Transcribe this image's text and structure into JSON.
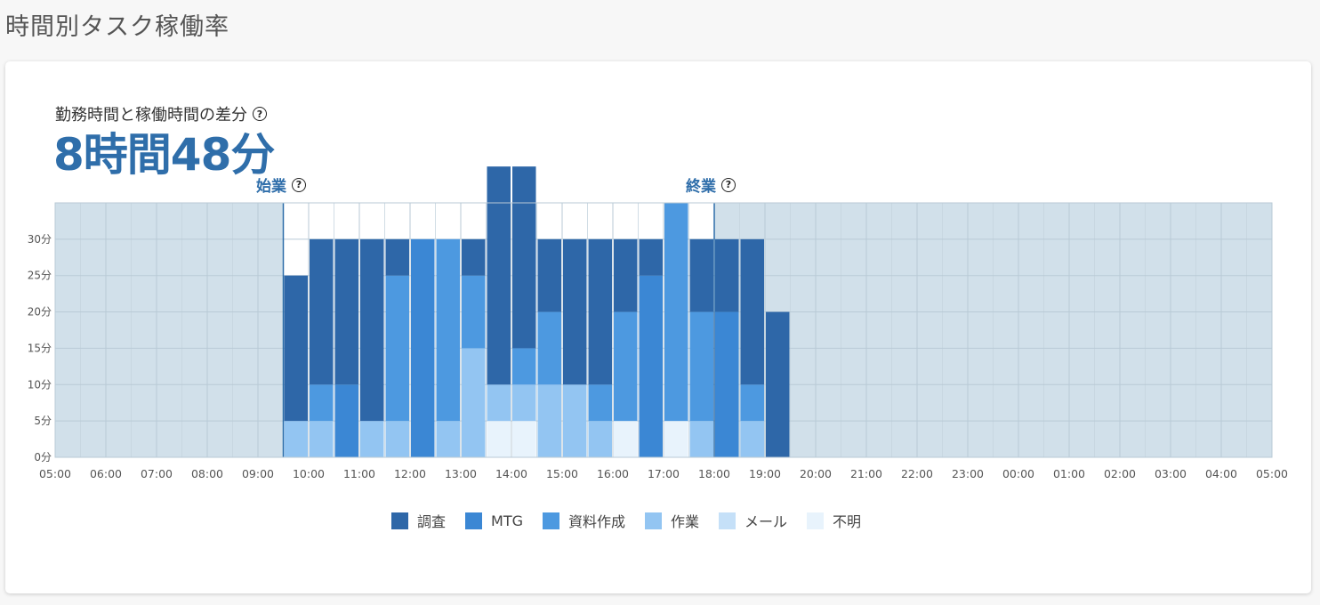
{
  "page": {
    "title": "時間別タスク稼働率"
  },
  "summary": {
    "label": "勤務時間と稼働時間の差分",
    "help_glyph": "?",
    "value": "8時間48分"
  },
  "markers": {
    "start_label": "始業",
    "start_time": "09:30",
    "end_label": "終業",
    "end_time": "18:00",
    "help_glyph": "?"
  },
  "colors": {
    "調査": "#2e67a8",
    "MTG": "#3b87d4",
    "資料作成": "#4d99e0",
    "作業": "#93c5f2",
    "メール": "#c5e0f8",
    "不明": "#e8f3fc",
    "outside_bg": "#d1e0ea",
    "marker": "#2f6eaa"
  },
  "chart_data": {
    "type": "bar",
    "stacked": true,
    "xlabels": [
      "05:00",
      "06:00",
      "07:00",
      "08:00",
      "09:00",
      "10:00",
      "11:00",
      "12:00",
      "13:00",
      "14:00",
      "15:00",
      "16:00",
      "17:00",
      "18:00",
      "19:00",
      "20:00",
      "21:00",
      "22:00",
      "23:00",
      "00:00",
      "01:00",
      "02:00",
      "03:00",
      "04:00",
      "05:00"
    ],
    "yticks": [
      "0分",
      "5分",
      "10分",
      "15分",
      "20分",
      "25分",
      "30分"
    ],
    "ylim": [
      0,
      35
    ],
    "legend": [
      "調査",
      "MTG",
      "資料作成",
      "作業",
      "メール",
      "不明"
    ],
    "legend_position": "bottom",
    "grid": true,
    "bars": [
      {
        "slot": "09:30",
        "segments": [
          {
            "task": "作業",
            "minutes": 5
          },
          {
            "task": "調査",
            "minutes": 20
          }
        ]
      },
      {
        "slot": "10:00",
        "segments": [
          {
            "task": "作業",
            "minutes": 5
          },
          {
            "task": "資料作成",
            "minutes": 5
          },
          {
            "task": "調査",
            "minutes": 20
          }
        ]
      },
      {
        "slot": "10:30",
        "segments": [
          {
            "task": "MTG",
            "minutes": 10
          },
          {
            "task": "調査",
            "minutes": 20
          }
        ]
      },
      {
        "slot": "11:00",
        "segments": [
          {
            "task": "作業",
            "minutes": 5
          },
          {
            "task": "調査",
            "minutes": 25
          }
        ]
      },
      {
        "slot": "11:30",
        "segments": [
          {
            "task": "作業",
            "minutes": 5
          },
          {
            "task": "資料作成",
            "minutes": 20
          },
          {
            "task": "調査",
            "minutes": 5
          }
        ]
      },
      {
        "slot": "12:00",
        "segments": [
          {
            "task": "MTG",
            "minutes": 30
          }
        ]
      },
      {
        "slot": "12:30",
        "segments": [
          {
            "task": "作業",
            "minutes": 5
          },
          {
            "task": "資料作成",
            "minutes": 25
          }
        ]
      },
      {
        "slot": "13:00",
        "segments": [
          {
            "task": "作業",
            "minutes": 15
          },
          {
            "task": "資料作成",
            "minutes": 10
          },
          {
            "task": "調査",
            "minutes": 5
          }
        ]
      },
      {
        "slot": "13:30",
        "segments": [
          {
            "task": "不明",
            "minutes": 5
          },
          {
            "task": "作業",
            "minutes": 5
          },
          {
            "task": "調査",
            "minutes": 30
          }
        ]
      },
      {
        "slot": "14:00",
        "segments": [
          {
            "task": "不明",
            "minutes": 5
          },
          {
            "task": "作業",
            "minutes": 5
          },
          {
            "task": "資料作成",
            "minutes": 5
          },
          {
            "task": "調査",
            "minutes": 25
          }
        ]
      },
      {
        "slot": "14:30",
        "segments": [
          {
            "task": "作業",
            "minutes": 10
          },
          {
            "task": "資料作成",
            "minutes": 10
          },
          {
            "task": "調査",
            "minutes": 10
          }
        ]
      },
      {
        "slot": "15:00",
        "segments": [
          {
            "task": "作業",
            "minutes": 10
          },
          {
            "task": "調査",
            "minutes": 20
          }
        ]
      },
      {
        "slot": "15:30",
        "segments": [
          {
            "task": "作業",
            "minutes": 5
          },
          {
            "task": "資料作成",
            "minutes": 5
          },
          {
            "task": "調査",
            "minutes": 20
          }
        ]
      },
      {
        "slot": "16:00",
        "segments": [
          {
            "task": "不明",
            "minutes": 5
          },
          {
            "task": "資料作成",
            "minutes": 15
          },
          {
            "task": "調査",
            "minutes": 10
          }
        ]
      },
      {
        "slot": "16:30",
        "segments": [
          {
            "task": "MTG",
            "minutes": 25
          },
          {
            "task": "調査",
            "minutes": 5
          }
        ]
      },
      {
        "slot": "17:00",
        "segments": [
          {
            "task": "不明",
            "minutes": 5
          },
          {
            "task": "資料作成",
            "minutes": 30
          }
        ]
      },
      {
        "slot": "17:30",
        "segments": [
          {
            "task": "作業",
            "minutes": 5
          },
          {
            "task": "資料作成",
            "minutes": 15
          },
          {
            "task": "調査",
            "minutes": 10
          }
        ]
      },
      {
        "slot": "18:00",
        "segments": [
          {
            "task": "MTG",
            "minutes": 20
          },
          {
            "task": "調査",
            "minutes": 10
          }
        ]
      },
      {
        "slot": "18:30",
        "segments": [
          {
            "task": "作業",
            "minutes": 5
          },
          {
            "task": "資料作成",
            "minutes": 5
          },
          {
            "task": "調査",
            "minutes": 20
          }
        ]
      },
      {
        "slot": "19:00",
        "segments": [
          {
            "task": "調査",
            "minutes": 20
          }
        ]
      }
    ]
  }
}
